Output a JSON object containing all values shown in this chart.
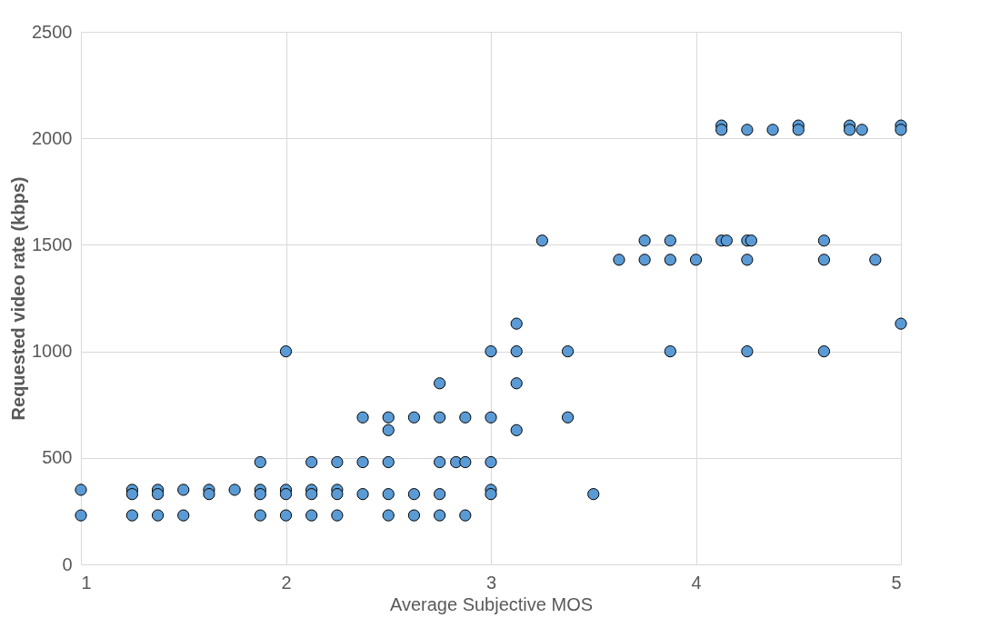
{
  "chart_data": {
    "type": "scatter",
    "xlabel": "Average Subjective MOS",
    "ylabel": "Requested video rate (kbps)",
    "x": [
      1,
      1,
      1.25,
      1.25,
      1.25,
      1.375,
      1.375,
      1.375,
      1.5,
      1.5,
      1.625,
      1.625,
      1.75,
      1.875,
      1.875,
      1.875,
      1.875,
      2,
      2,
      2,
      2,
      2.125,
      2.125,
      2.125,
      2.125,
      2.25,
      2.25,
      2.25,
      2.25,
      2.375,
      2.375,
      2.375,
      2.5,
      2.5,
      2.5,
      2.5,
      2.5,
      2.625,
      2.625,
      2.625,
      2.75,
      2.75,
      2.75,
      2.75,
      2.75,
      2.83,
      2.875,
      2.875,
      2.875,
      3,
      3,
      3,
      3,
      3,
      3.125,
      3.125,
      3.125,
      3.125,
      3.25,
      3.375,
      3.375,
      3.5,
      3.625,
      3.75,
      3.75,
      3.875,
      3.875,
      3.875,
      4,
      4.125,
      4.125,
      4.125,
      4.15,
      4.25,
      4.25,
      4.25,
      4.25,
      4.27,
      4.375,
      4.5,
      4.5,
      4.625,
      4.625,
      4.625,
      4.75,
      4.75,
      4.81,
      4.875,
      5,
      5,
      5
    ],
    "values": [
      350,
      230,
      350,
      330,
      230,
      350,
      330,
      230,
      350,
      230,
      350,
      330,
      350,
      480,
      350,
      330,
      230,
      1000,
      350,
      330,
      230,
      480,
      350,
      330,
      230,
      480,
      350,
      330,
      230,
      690,
      480,
      330,
      690,
      630,
      480,
      330,
      230,
      690,
      330,
      230,
      850,
      690,
      480,
      330,
      230,
      480,
      690,
      480,
      230,
      1000,
      690,
      480,
      350,
      330,
      1130,
      1000,
      850,
      630,
      1520,
      1000,
      690,
      330,
      1430,
      1520,
      1430,
      1520,
      1430,
      1000,
      1430,
      2060,
      2040,
      1520,
      1520,
      2040,
      1520,
      1430,
      1000,
      1520,
      2040,
      2060,
      2040,
      1520,
      1430,
      1000,
      2060,
      2040,
      2040,
      1430,
      2060,
      2040,
      1130
    ],
    "color": "#5b9bd5",
    "marker": "circle",
    "grid": true,
    "xlim": [
      1,
      5
    ],
    "xticks": [
      1,
      2,
      3,
      4,
      5
    ],
    "ylim": [
      0,
      2500
    ],
    "yticks": [
      0,
      500,
      1000,
      1500,
      2000,
      2500
    ]
  }
}
